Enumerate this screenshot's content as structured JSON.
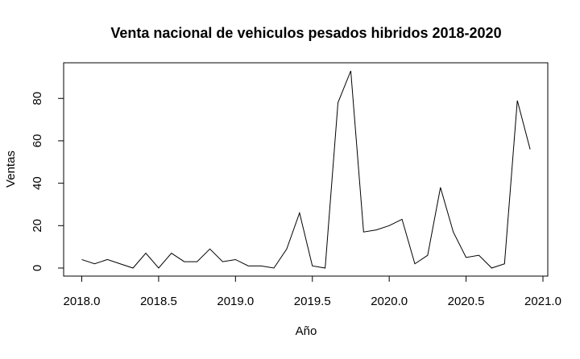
{
  "chart_data": {
    "type": "line",
    "title": "Venta nacional de vehiculos pesados hibridos 2018-2020",
    "xlabel": "Año",
    "ylabel": "Ventas",
    "xlim": [
      2018.0,
      2021.0
    ],
    "ylim": [
      0,
      93
    ],
    "x_ticks": [
      2018.0,
      2018.5,
      2019.0,
      2019.5,
      2020.0,
      2020.5,
      2021.0
    ],
    "x_tick_labels": [
      "2018.0",
      "2018.5",
      "2019.0",
      "2019.5",
      "2020.0",
      "2020.5",
      "2021.0"
    ],
    "y_ticks": [
      0,
      20,
      40,
      60,
      80
    ],
    "y_tick_labels": [
      "0",
      "20",
      "40",
      "60",
      "80"
    ],
    "grid": false,
    "line_color": "#000000",
    "series": [
      {
        "x": [
          2018.0,
          2018.0833,
          2018.1667,
          2018.25,
          2018.3333,
          2018.4167,
          2018.5,
          2018.5833,
          2018.6667,
          2018.75,
          2018.8333,
          2018.9167,
          2019.0,
          2019.0833,
          2019.1667,
          2019.25,
          2019.3333,
          2019.4167,
          2019.5,
          2019.5833,
          2019.6667,
          2019.75,
          2019.8333,
          2019.9167,
          2020.0,
          2020.0833,
          2020.1667,
          2020.25,
          2020.3333,
          2020.4167,
          2020.5,
          2020.5833,
          2020.6667,
          2020.75,
          2020.8333,
          2020.9167
        ],
        "y": [
          4,
          2,
          4,
          2,
          0,
          7,
          0,
          7,
          3,
          3,
          9,
          3,
          4,
          1,
          1,
          0,
          9,
          26,
          1,
          0,
          78,
          93,
          17,
          18,
          20,
          23,
          2,
          6,
          38,
          17,
          5,
          6,
          0,
          2,
          79,
          56
        ]
      }
    ]
  }
}
